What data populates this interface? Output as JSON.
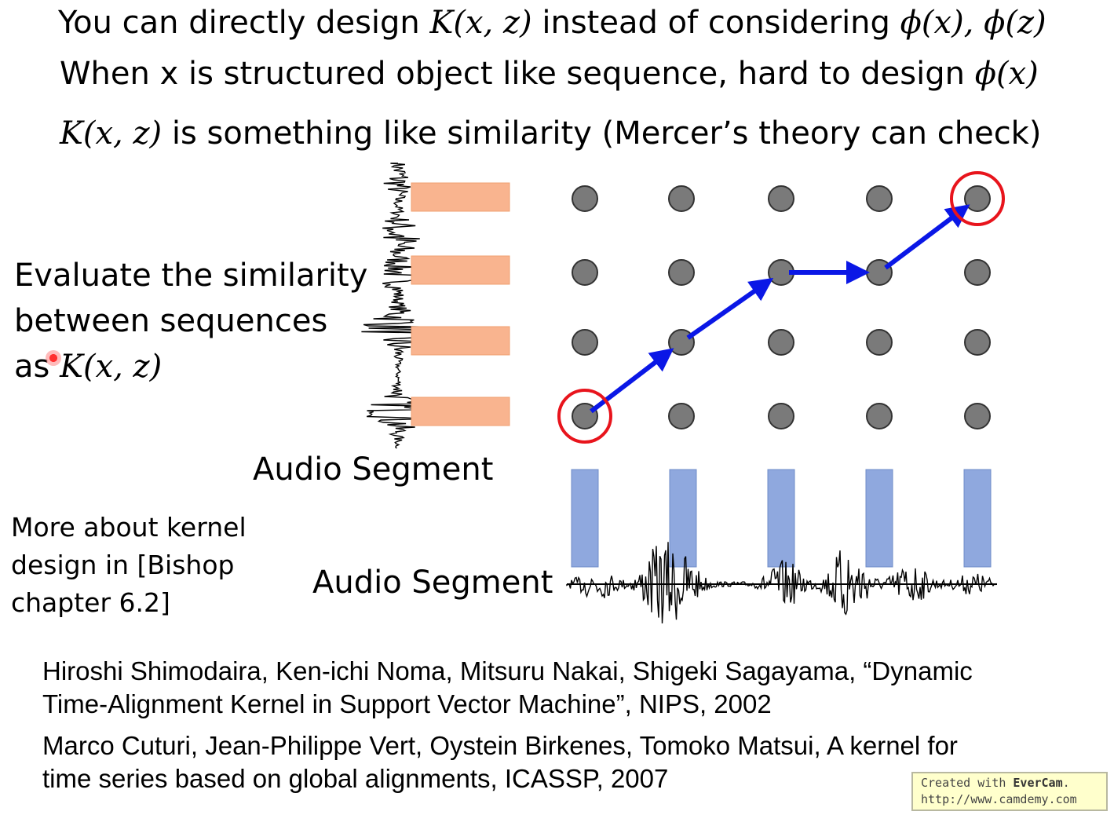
{
  "heading": {
    "line1": {
      "pre": "You can directly design ",
      "k": "K(x, z)",
      "mid": " instead of considering ",
      "phi": "ϕ(x), ϕ(z)"
    },
    "line2": {
      "pre": "When x is structured object like sequence,  hard to design ",
      "phi": "ϕ(x)"
    },
    "line3": {
      "k": "K(x, z)",
      "post": " is something like similarity  (Mercer’s theory can check)"
    }
  },
  "left_caption": {
    "line1": "Evaluate the similarity",
    "line2": "between sequences",
    "line3_pre": "as ",
    "line3_math": "K(x, z)"
  },
  "audio_segment_vertical_label": "Audio Segment",
  "audio_segment_horizontal_label": "Audio Segment",
  "note": {
    "line1": "More about kernel",
    "line2": "design in [Bishop",
    "line3": "chapter 6.2]"
  },
  "references": {
    "ref1_line1": "Hiroshi Shimodaira, Ken-ichi Noma, Mitsuru Nakai, Shigeki Sagayama, “Dynamic",
    "ref1_line2": "Time-Alignment Kernel in Support Vector Machine”, NIPS, 2002",
    "ref2_line1": "Marco Cuturi, Jean-Philippe Vert, Oystein Birkenes, Tomoko Matsui, A kernel for",
    "ref2_line2": "time series based on global alignments, ICASSP, 2007"
  },
  "watermark": {
    "created_with": "Created with ",
    "brand": "EverCam",
    "dot": ".",
    "url": "http://www.camdemy.com"
  },
  "colors": {
    "dot_fill": "#7a7a7a",
    "arrow": "#0a17e6",
    "highlight_circle": "#e8141c",
    "orange_segment": "#f9b48f",
    "blue_segment": "#8fa8de"
  },
  "alignment_grid": {
    "columns": 5,
    "rows": 4,
    "path": [
      [
        0,
        0
      ],
      [
        1,
        1
      ],
      [
        2,
        2
      ],
      [
        3,
        2
      ],
      [
        4,
        3
      ]
    ],
    "start_highlight": [
      0,
      0
    ],
    "end_highlight": [
      4,
      3
    ]
  }
}
